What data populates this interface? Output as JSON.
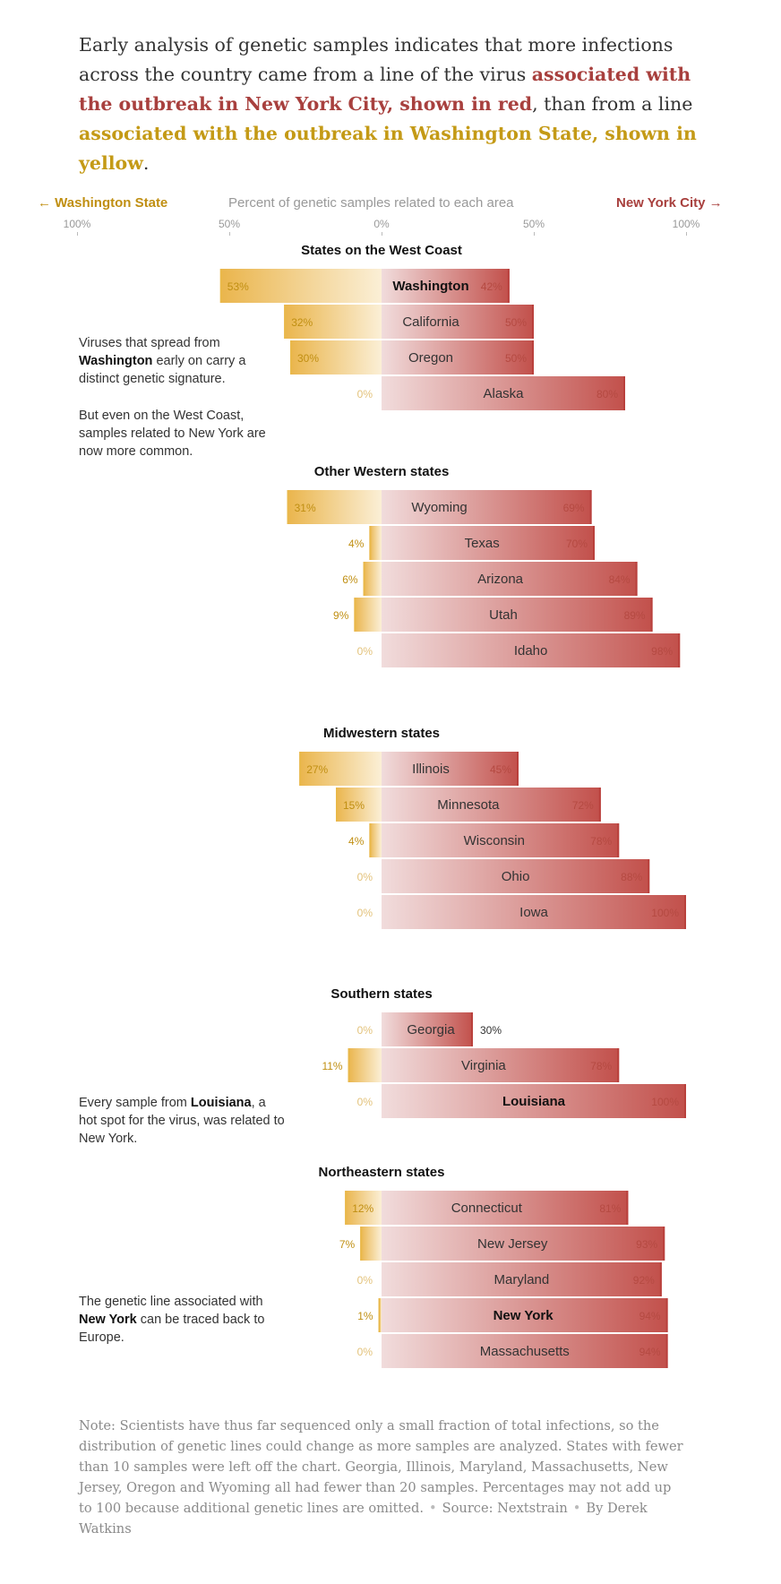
{
  "intro": {
    "part1": "Early analysis of genetic samples indicates that more infections across the country came from a line of the virus ",
    "ny_text": "associated with the outbreak in New York City, shown in red",
    "part2": ", than from a line ",
    "wa_text": "associated with the outbreak in Washington State, shown in yellow",
    "part3": "."
  },
  "axis": {
    "left_label": "← Washington State",
    "center_label": "Percent of genetic samples related to each area",
    "right_label": "New York City →",
    "ticks": [
      "100%",
      "50%",
      "0%",
      "50%",
      "100%"
    ]
  },
  "colors": {
    "washington": "#e9b84a",
    "new_york": "#b9403c",
    "washington_text": "#c08f12",
    "new_york_text": "#b54a42"
  },
  "annotations": [
    {
      "pre": "Viruses that spread from ",
      "bold": "Washington",
      "post": " early on carry a distinct genetic signature."
    },
    {
      "pre": "But even on the West Coast, samples related to New York are now more common.",
      "bold": "",
      "post": ""
    },
    {
      "pre": "Every sample from ",
      "bold": "Louisiana",
      "post": ", a hot spot for the virus, was related to New York."
    },
    {
      "pre": "The genetic line associated with ",
      "bold": "New York",
      "post": " can be traced back to Europe."
    }
  ],
  "note": {
    "text": "Note: Scientists have thus far sequenced only a small fraction of total infections, so the distribution of genetic lines could change as more samples are analyzed. States with fewer than 10 samples were left off the chart. Georgia, Illinois, Maryland, Massachusetts, New Jersey, Oregon and Wyoming all had fewer than 20 samples. Percentages may not add up to 100 because additional genetic lines are omitted.",
    "source": "Source: Nextstrain",
    "byline": "By Derek Watkins"
  },
  "chart_data": {
    "type": "bar",
    "orientation": "horizontal-diverging",
    "xlim_left": [
      0,
      100
    ],
    "xlim_right": [
      0,
      100
    ],
    "unit": "%",
    "groups": [
      {
        "title": "States on the West Coast",
        "rows": [
          {
            "state": "Washington",
            "washington": 53,
            "new_york": 42,
            "highlight": true
          },
          {
            "state": "California",
            "washington": 32,
            "new_york": 50
          },
          {
            "state": "Oregon",
            "washington": 30,
            "new_york": 50
          },
          {
            "state": "Alaska",
            "washington": 0,
            "new_york": 80
          }
        ]
      },
      {
        "title": "Other Western states",
        "rows": [
          {
            "state": "Wyoming",
            "washington": 31,
            "new_york": 69
          },
          {
            "state": "Texas",
            "washington": 4,
            "new_york": 70
          },
          {
            "state": "Arizona",
            "washington": 6,
            "new_york": 84
          },
          {
            "state": "Utah",
            "washington": 9,
            "new_york": 89
          },
          {
            "state": "Idaho",
            "washington": 0,
            "new_york": 98
          }
        ]
      },
      {
        "title": "Midwestern states",
        "rows": [
          {
            "state": "Illinois",
            "washington": 27,
            "new_york": 45
          },
          {
            "state": "Minnesota",
            "washington": 15,
            "new_york": 72
          },
          {
            "state": "Wisconsin",
            "washington": 4,
            "new_york": 78
          },
          {
            "state": "Ohio",
            "washington": 0,
            "new_york": 88
          },
          {
            "state": "Iowa",
            "washington": 0,
            "new_york": 100
          }
        ]
      },
      {
        "title": "Southern states",
        "rows": [
          {
            "state": "Georgia",
            "washington": 0,
            "new_york": 30
          },
          {
            "state": "Virginia",
            "washington": 11,
            "new_york": 78
          },
          {
            "state": "Louisiana",
            "washington": 0,
            "new_york": 100,
            "highlight": true
          }
        ]
      },
      {
        "title": "Northeastern states",
        "rows": [
          {
            "state": "Connecticut",
            "washington": 12,
            "new_york": 81
          },
          {
            "state": "New Jersey",
            "washington": 7,
            "new_york": 93
          },
          {
            "state": "Maryland",
            "washington": 0,
            "new_york": 92
          },
          {
            "state": "New York",
            "washington": 1,
            "new_york": 94,
            "highlight": true
          },
          {
            "state": "Massachusetts",
            "washington": 0,
            "new_york": 94
          }
        ]
      }
    ]
  }
}
